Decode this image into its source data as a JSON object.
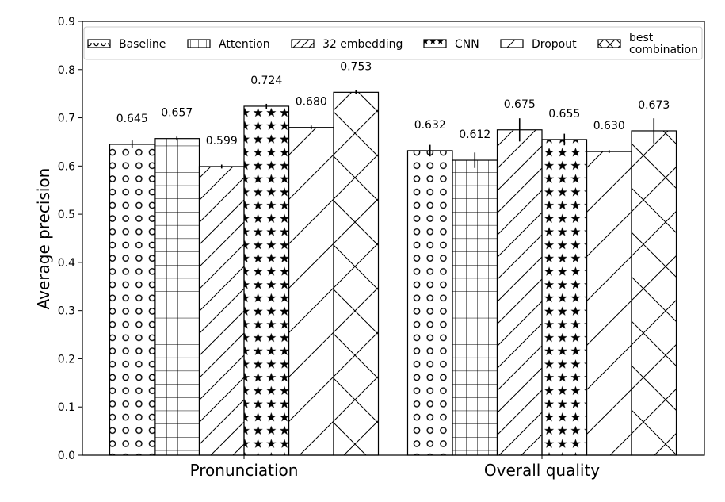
{
  "chart_data": {
    "type": "bar",
    "title": "",
    "xlabel": "",
    "ylabel": "Average precision",
    "ylim": [
      0,
      0.9
    ],
    "yticks": [
      "0.0",
      "0.1",
      "0.2",
      "0.3",
      "0.4",
      "0.5",
      "0.6",
      "0.7",
      "0.8",
      "0.9"
    ],
    "categories": [
      "Pronunciation",
      "Overall quality"
    ],
    "legend_position": "top",
    "grid": false,
    "series": [
      {
        "name": "Baseline",
        "pattern": "circles",
        "values": [
          0.645,
          0.632
        ],
        "labels": [
          "0.645",
          "0.632"
        ],
        "errors": [
          0.008,
          0.012
        ]
      },
      {
        "name": "Attention",
        "pattern": "grid",
        "values": [
          0.657,
          0.612
        ],
        "labels": [
          "0.657",
          "0.612"
        ],
        "errors": [
          0.004,
          0.016
        ]
      },
      {
        "name": "32 embedding",
        "pattern": "diagonal",
        "values": [
          0.599,
          0.675
        ],
        "labels": [
          "0.599",
          "0.675"
        ],
        "errors": [
          0.004,
          0.024
        ]
      },
      {
        "name": "CNN",
        "pattern": "stars",
        "values": [
          0.724,
          0.655
        ],
        "labels": [
          "0.724",
          "0.655"
        ],
        "errors": [
          0.005,
          0.012
        ]
      },
      {
        "name": "Dropout",
        "pattern": "wide-diagonal",
        "values": [
          0.68,
          0.63
        ],
        "labels": [
          "0.680",
          "0.630"
        ],
        "errors": [
          0.004,
          0.003
        ]
      },
      {
        "name": "best\ncombination",
        "pattern": "crosshatch",
        "values": [
          0.753,
          0.673
        ],
        "labels": [
          "0.753",
          "0.673"
        ],
        "errors": [
          0.004,
          0.026
        ]
      }
    ]
  },
  "colors": {
    "bar_fill": "#ffffff",
    "stroke": "#000000",
    "background": "#ffffff"
  }
}
